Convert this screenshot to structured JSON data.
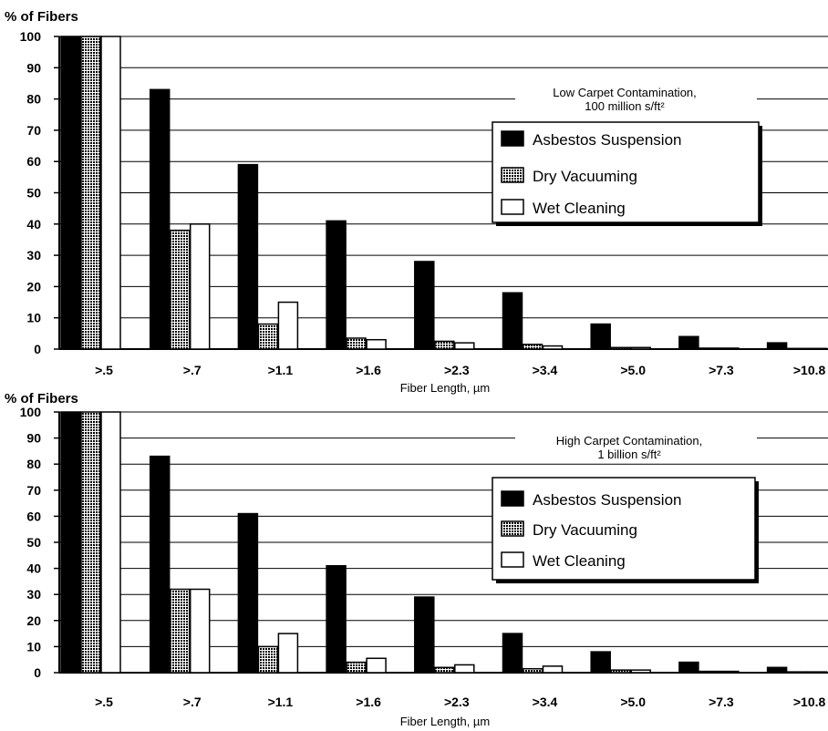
{
  "chart_data": [
    {
      "type": "bar",
      "annotation": [
        "Low Carpet Contamination,",
        "100 million s/ft²"
      ],
      "ylabel": "% of Fibers",
      "xlabel": "Fiber Length, µm",
      "categories": [
        ">.5",
        ">.7",
        ">1.1",
        ">1.6",
        ">2.3",
        ">3.4",
        ">5.0",
        ">7.3",
        ">10.8"
      ],
      "ylim": [
        0,
        100
      ],
      "yticks": [
        0,
        10,
        20,
        30,
        40,
        50,
        60,
        70,
        80,
        90,
        100
      ],
      "grid": true,
      "legend_position": "top-right",
      "series": [
        {
          "name": "Asbestos Suspension",
          "values": [
            100,
            83,
            59,
            41,
            28,
            18,
            8,
            4,
            2
          ]
        },
        {
          "name": "Dry Vacuuming",
          "values": [
            100,
            38,
            8,
            3.5,
            2.5,
            1.5,
            0.5,
            0.3,
            0.2
          ]
        },
        {
          "name": "Wet Cleaning",
          "values": [
            100,
            40,
            15,
            3,
            2,
            1,
            0.5,
            0.3,
            0.2
          ]
        }
      ]
    },
    {
      "type": "bar",
      "annotation": [
        "High Carpet Contamination,",
        "1 billion s/ft²"
      ],
      "ylabel": "% of Fibers",
      "xlabel": "Fiber Length, µm",
      "categories": [
        ">.5",
        ">.7",
        ">1.1",
        ">1.6",
        ">2.3",
        ">3.4",
        ">5.0",
        ">7.3",
        ">10.8"
      ],
      "ylim": [
        0,
        100
      ],
      "yticks": [
        0,
        10,
        20,
        30,
        40,
        50,
        60,
        70,
        80,
        90,
        100
      ],
      "grid": true,
      "legend_position": "top-right",
      "series": [
        {
          "name": "Asbestos Suspension",
          "values": [
            100,
            83,
            61,
            41,
            29,
            15,
            8,
            4,
            2
          ]
        },
        {
          "name": "Dry Vacuuming",
          "values": [
            100,
            32,
            10,
            4,
            2,
            1.5,
            1,
            0.5,
            0.3
          ]
        },
        {
          "name": "Wet Cleaning",
          "values": [
            100,
            32,
            15,
            5.5,
            3,
            2.5,
            1,
            0.5,
            0.3
          ]
        }
      ]
    }
  ],
  "colors": {
    "asbestos": "#000000",
    "dry_vacuuming": "#5a5a5a",
    "wet_cleaning": "#ffffff",
    "grid": "#000000"
  }
}
